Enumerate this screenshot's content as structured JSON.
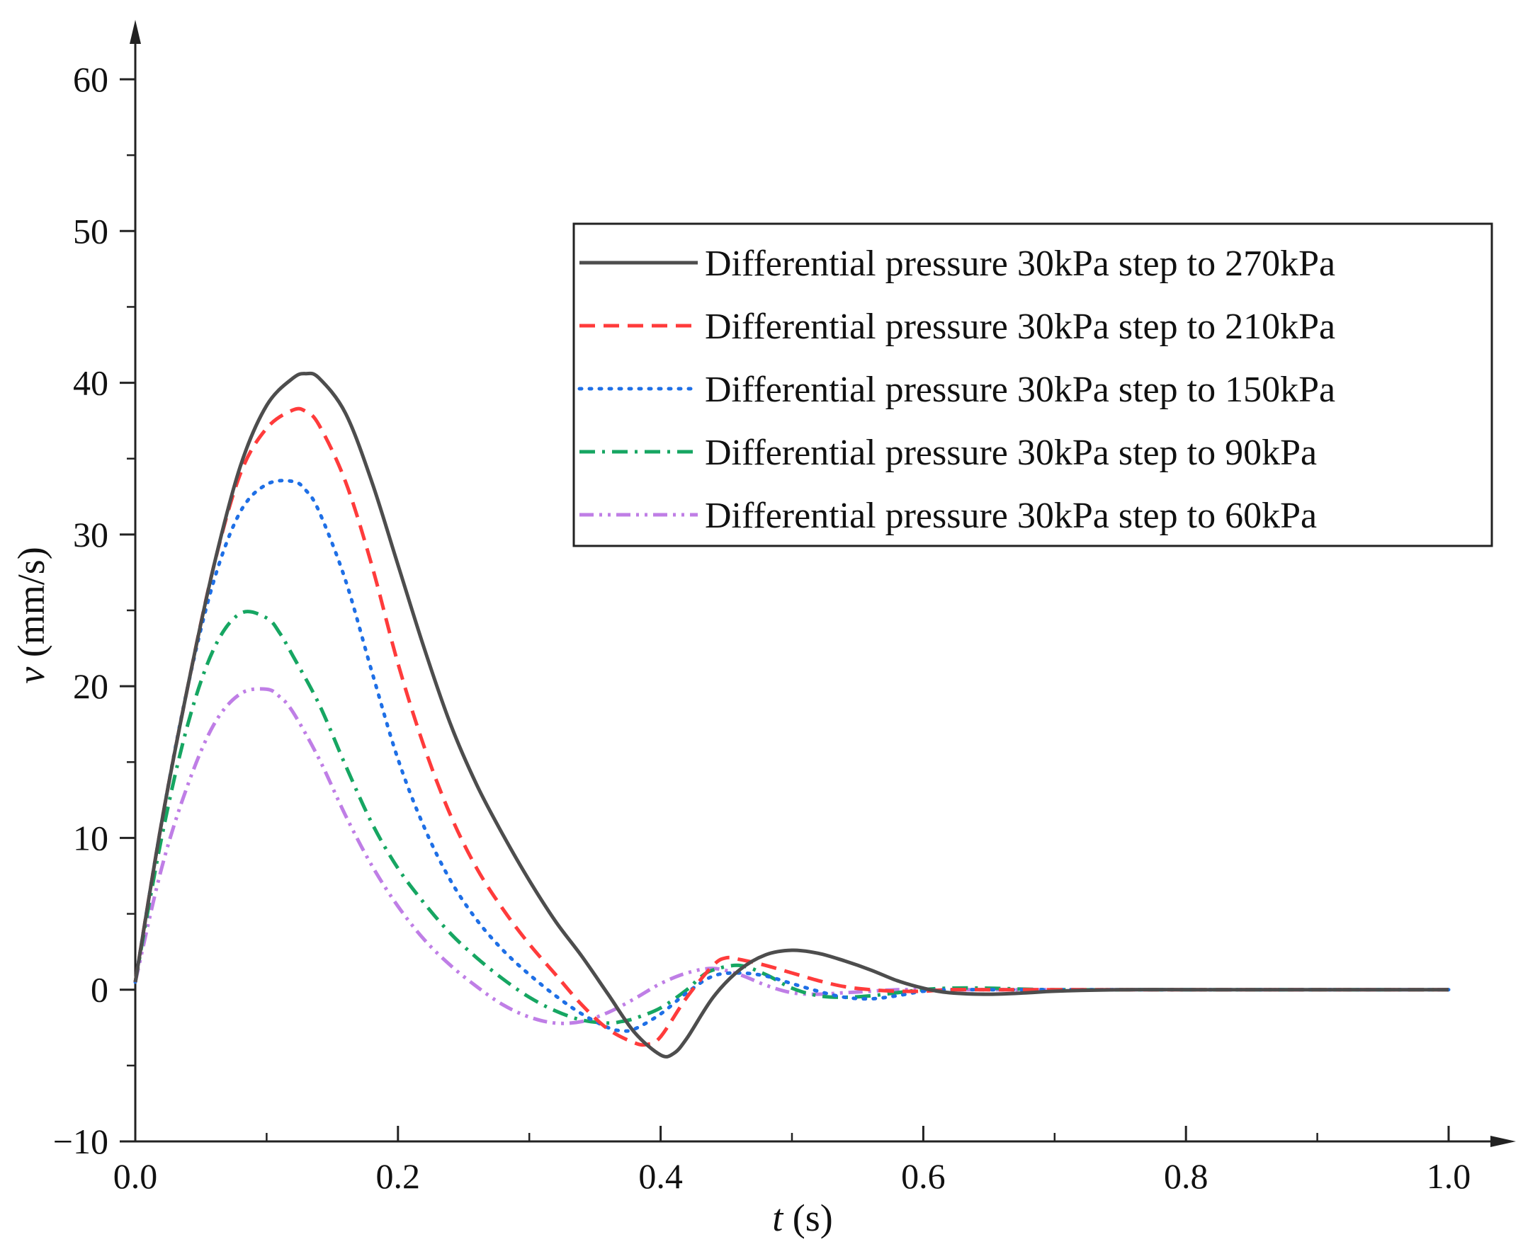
{
  "chart_data": {
    "type": "line",
    "title": "",
    "xlabel": {
      "var": "t",
      "unit": " (s)"
    },
    "ylabel": {
      "var": "v",
      "unit": " (mm/s)"
    },
    "xlim": [
      0.0,
      1.0
    ],
    "ylim": [
      -10,
      60
    ],
    "xticks": [
      0.0,
      0.2,
      0.4,
      0.6,
      0.8,
      1.0
    ],
    "xtick_labels": [
      "0.0",
      "0.2",
      "0.4",
      "0.6",
      "0.8",
      "1.0"
    ],
    "xminor": [
      0.1,
      0.3,
      0.5,
      0.7,
      0.9
    ],
    "yticks": [
      -10,
      0,
      10,
      20,
      30,
      40,
      50,
      60
    ],
    "ytick_labels": [
      "−10",
      "0",
      "10",
      "20",
      "30",
      "40",
      "50",
      "60"
    ],
    "yminor": [
      -5,
      5,
      15,
      25,
      35,
      45,
      55
    ],
    "grid": false,
    "legend_position": "top-right",
    "series": [
      {
        "name": "Differential pressure 30kPa step to 270kPa",
        "color": "#4d4d4d",
        "dash": "solid",
        "x": [
          0,
          0.02,
          0.04,
          0.06,
          0.08,
          0.1,
          0.12,
          0.13,
          0.14,
          0.16,
          0.18,
          0.2,
          0.22,
          0.24,
          0.26,
          0.28,
          0.3,
          0.32,
          0.34,
          0.36,
          0.38,
          0.4,
          0.41,
          0.42,
          0.44,
          0.46,
          0.48,
          0.5,
          0.52,
          0.54,
          0.56,
          0.58,
          0.6,
          0.62,
          0.65,
          0.68,
          0.7,
          0.75,
          0.8,
          0.9,
          1.0
        ],
        "values": [
          0.5,
          11,
          20,
          28,
          34.5,
          38.5,
          40.3,
          40.6,
          40.3,
          38,
          33.5,
          28,
          22.5,
          17.5,
          13.5,
          10.2,
          7.2,
          4.5,
          2.2,
          -0.3,
          -2.8,
          -4.3,
          -4.2,
          -3.2,
          -0.5,
          1.3,
          2.3,
          2.6,
          2.4,
          1.9,
          1.3,
          0.6,
          0.1,
          -0.2,
          -0.3,
          -0.2,
          -0.1,
          0,
          0,
          0,
          0
        ]
      },
      {
        "name": "Differential pressure 30kPa step to 210kPa",
        "color": "#ff3b3b",
        "dash": "dashed",
        "x": [
          0,
          0.02,
          0.04,
          0.06,
          0.08,
          0.1,
          0.12,
          0.13,
          0.14,
          0.16,
          0.18,
          0.2,
          0.22,
          0.24,
          0.26,
          0.28,
          0.3,
          0.32,
          0.34,
          0.36,
          0.38,
          0.39,
          0.4,
          0.42,
          0.44,
          0.45,
          0.46,
          0.48,
          0.5,
          0.52,
          0.54,
          0.56,
          0.58,
          0.6,
          0.62,
          0.65,
          0.7,
          0.8,
          0.9,
          1.0
        ],
        "values": [
          0.5,
          11,
          20,
          28,
          34,
          37,
          38.2,
          38.1,
          37.2,
          33.5,
          28,
          21.5,
          16,
          11.5,
          8,
          5.3,
          3,
          1,
          -1,
          -2.6,
          -3.5,
          -3.6,
          -3.1,
          -0.5,
          1.6,
          2.1,
          2,
          1.6,
          1.1,
          0.6,
          0.2,
          0,
          -0.1,
          -0.1,
          0,
          0,
          0,
          0,
          0,
          0
        ]
      },
      {
        "name": "Differential pressure 30kPa step to 150kPa",
        "color": "#1e6fe6",
        "dash": "dotted",
        "x": [
          0,
          0.02,
          0.04,
          0.06,
          0.08,
          0.1,
          0.12,
          0.13,
          0.14,
          0.16,
          0.18,
          0.2,
          0.22,
          0.24,
          0.26,
          0.28,
          0.3,
          0.32,
          0.34,
          0.36,
          0.37,
          0.38,
          0.4,
          0.42,
          0.44,
          0.46,
          0.48,
          0.5,
          0.52,
          0.54,
          0.56,
          0.58,
          0.6,
          0.62,
          0.65,
          0.7,
          0.8,
          0.9,
          1.0
        ],
        "values": [
          0.5,
          11,
          20,
          27,
          31.5,
          33.3,
          33.5,
          32.9,
          31.5,
          27,
          21,
          15.2,
          10.7,
          7.2,
          4.6,
          2.6,
          1,
          -0.4,
          -1.6,
          -2.5,
          -2.7,
          -2.6,
          -1.6,
          -0.2,
          0.9,
          1.1,
          0.9,
          0.4,
          -0.1,
          -0.5,
          -0.6,
          -0.4,
          -0.1,
          0,
          0,
          0,
          0,
          0,
          0
        ]
      },
      {
        "name": "Differential pressure 30kPa step to 90kPa",
        "color": "#16a662",
        "dash": "dashdot",
        "x": [
          0,
          0.02,
          0.04,
          0.06,
          0.08,
          0.1,
          0.11,
          0.12,
          0.14,
          0.16,
          0.18,
          0.2,
          0.22,
          0.24,
          0.26,
          0.28,
          0.3,
          0.32,
          0.34,
          0.36,
          0.37,
          0.38,
          0.4,
          0.42,
          0.43,
          0.44,
          0.46,
          0.48,
          0.5,
          0.52,
          0.54,
          0.56,
          0.58,
          0.6,
          0.62,
          0.65,
          0.7,
          0.8,
          0.9,
          1.0
        ],
        "values": [
          0.5,
          10,
          17.5,
          22.5,
          24.8,
          24.5,
          23.5,
          22,
          18.8,
          14.8,
          11,
          8,
          5.7,
          3.7,
          2.1,
          0.7,
          -0.5,
          -1.4,
          -2,
          -2.2,
          -2.1,
          -1.9,
          -1.2,
          0,
          0.8,
          1.3,
          1.6,
          1,
          0.1,
          -0.4,
          -0.5,
          -0.4,
          -0.2,
          0,
          0.1,
          0.1,
          0,
          0,
          0,
          0
        ]
      },
      {
        "name": "Differential pressure 30kPa step to 60kPa",
        "color": "#bf7ee6",
        "dash": "dashdotdot",
        "x": [
          0,
          0.02,
          0.04,
          0.06,
          0.08,
          0.1,
          0.11,
          0.12,
          0.14,
          0.16,
          0.18,
          0.2,
          0.22,
          0.24,
          0.26,
          0.28,
          0.3,
          0.32,
          0.34,
          0.36,
          0.38,
          0.4,
          0.42,
          0.44,
          0.46,
          0.48,
          0.5,
          0.52,
          0.54,
          0.56,
          0.58,
          0.6,
          0.65,
          0.7,
          0.8,
          0.9,
          1.0
        ],
        "values": [
          0.5,
          8,
          13.5,
          17.5,
          19.5,
          19.8,
          19.3,
          18.3,
          15.2,
          11.5,
          8.2,
          5.5,
          3.3,
          1.6,
          0.2,
          -1,
          -1.8,
          -2.2,
          -2.1,
          -1.5,
          -0.6,
          0.4,
          1.1,
          1.4,
          1,
          0.3,
          -0.2,
          -0.3,
          -0.2,
          -0.1,
          0,
          0,
          0,
          0,
          0,
          0,
          0
        ]
      }
    ]
  }
}
